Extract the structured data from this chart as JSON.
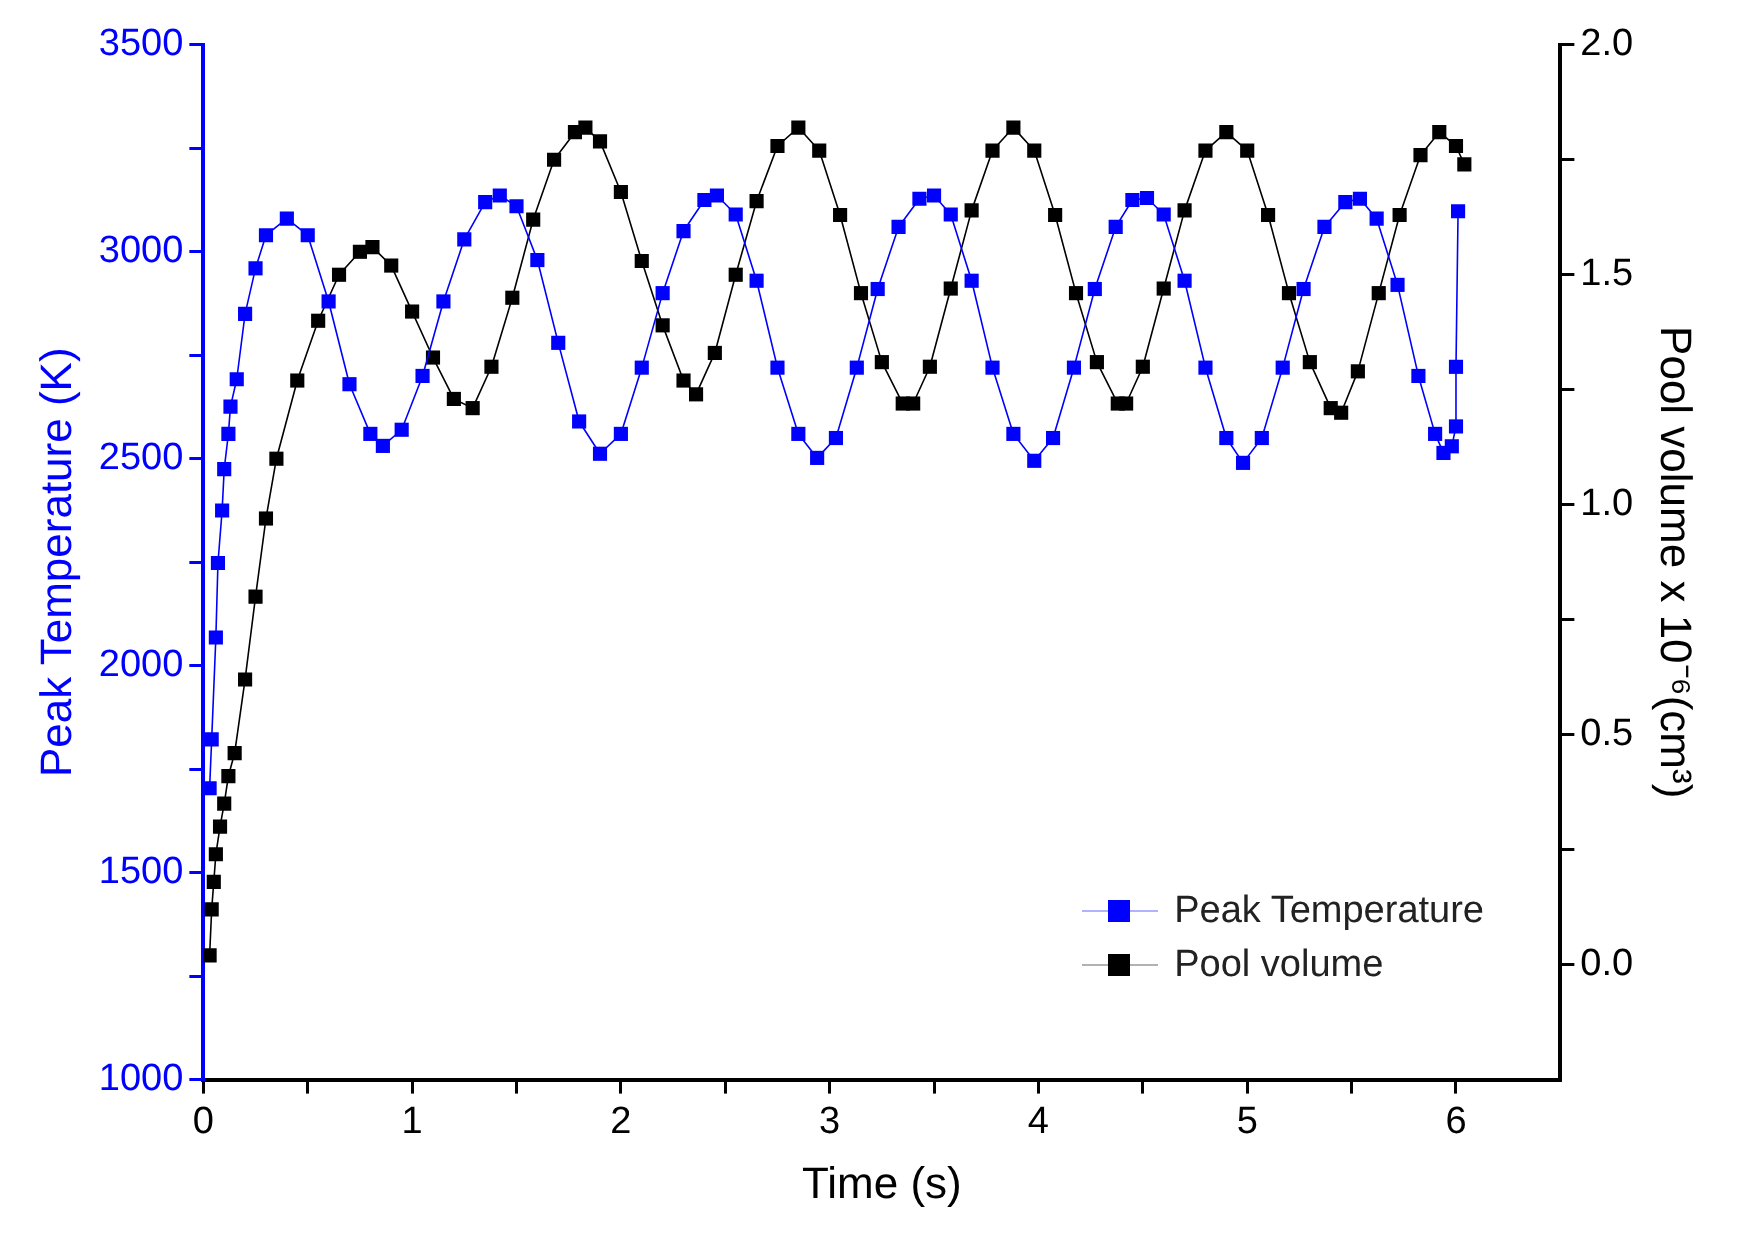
{
  "chart_data": {
    "type": "line",
    "xlabel": "Time (s)",
    "ylabel": "Peak Temperature (K)",
    "y2label": "Pool volume x 10⁻⁶(cm³)",
    "xlim": [
      0,
      6.5
    ],
    "xticks": [
      0,
      {
        "value": 0.5,
        "label": null
      },
      1,
      {
        "value": 1.5,
        "label": null
      },
      2,
      {
        "value": 2.5,
        "label": null
      },
      3,
      {
        "value": 3.5,
        "label": null
      },
      4,
      {
        "value": 4.5,
        "label": null
      },
      5,
      {
        "value": 5.5,
        "label": null
      },
      6
    ],
    "ylim": [
      1000,
      3500
    ],
    "yticks": [
      1000,
      {
        "value": 1250,
        "label": null
      },
      1500,
      {
        "value": 1750,
        "label": null
      },
      2000,
      {
        "value": 2250,
        "label": null
      },
      2500,
      {
        "value": 2750,
        "label": null
      },
      3000,
      {
        "value": 3250,
        "label": null
      },
      3500
    ],
    "y2lim": [
      -0.25,
      2.0
    ],
    "y2ticks": [
      {
        "value": 0,
        "label": "0.0"
      },
      {
        "value": 0.25,
        "label": null
      },
      {
        "value": 0.5,
        "label": "0.5"
      },
      {
        "value": 0.75,
        "label": null
      },
      {
        "value": 1,
        "label": "1.0"
      },
      {
        "value": 1.25,
        "label": null
      },
      {
        "value": 1.5,
        "label": "1.5"
      },
      {
        "value": 1.75,
        "label": null
      },
      {
        "value": 2,
        "label": "2.0"
      }
    ],
    "grid": false,
    "legend": "bottom right",
    "marker": "square",
    "line_style": "solid",
    "series": [
      {
        "name": "Peak Temperature",
        "color": "#0000ff",
        "axis": "y",
        "x": [
          0.03,
          0.04,
          0.06,
          0.07,
          0.09,
          0.1,
          0.12,
          0.13,
          0.16,
          0.2,
          0.25,
          0.3,
          0.4,
          0.5,
          0.6,
          0.7,
          0.8,
          0.86,
          0.95,
          1.05,
          1.15,
          1.25,
          1.35,
          1.42,
          1.5,
          1.6,
          1.7,
          1.8,
          1.9,
          2.0,
          2.1,
          2.2,
          2.3,
          2.4,
          2.46,
          2.55,
          2.65,
          2.75,
          2.85,
          2.94,
          3.03,
          3.13,
          3.23,
          3.33,
          3.43,
          3.5,
          3.58,
          3.68,
          3.78,
          3.88,
          3.98,
          4.07,
          4.17,
          4.27,
          4.37,
          4.45,
          4.52,
          4.6,
          4.7,
          4.8,
          4.9,
          4.98,
          5.07,
          5.17,
          5.27,
          5.37,
          5.47,
          5.54,
          5.62,
          5.72,
          5.82,
          5.9,
          5.94,
          5.98,
          6.0,
          6.0,
          6.01
        ],
        "values": [
          1704,
          1822,
          2068,
          2248,
          2375,
          2475,
          2560,
          2626,
          2692,
          2850,
          2960,
          3040,
          3080,
          3040,
          2880,
          2680,
          2560,
          2531,
          2570,
          2700,
          2880,
          3030,
          3120,
          3136,
          3110,
          2980,
          2780,
          2590,
          2512,
          2560,
          2720,
          2900,
          3050,
          3125,
          3136,
          3090,
          2930,
          2720,
          2560,
          2502,
          2550,
          2720,
          2910,
          3060,
          3128,
          3136,
          3090,
          2930,
          2720,
          2560,
          2495,
          2550,
          2720,
          2910,
          3060,
          3125,
          3130,
          3090,
          2930,
          2720,
          2550,
          2490,
          2550,
          2720,
          2910,
          3060,
          3120,
          3128,
          3080,
          2920,
          2700,
          2560,
          2514,
          2530,
          2578,
          2722,
          3098
        ]
      },
      {
        "name": "Pool volume",
        "color": "#000000",
        "axis": "y2",
        "x": [
          0.03,
          0.04,
          0.05,
          0.06,
          0.08,
          0.1,
          0.12,
          0.15,
          0.2,
          0.25,
          0.3,
          0.35,
          0.45,
          0.55,
          0.65,
          0.75,
          0.81,
          0.9,
          1.0,
          1.1,
          1.2,
          1.29,
          1.38,
          1.48,
          1.58,
          1.68,
          1.78,
          1.83,
          1.9,
          2.0,
          2.1,
          2.2,
          2.3,
          2.36,
          2.45,
          2.55,
          2.65,
          2.75,
          2.85,
          2.95,
          3.05,
          3.15,
          3.25,
          3.35,
          3.4,
          3.48,
          3.58,
          3.68,
          3.78,
          3.88,
          3.98,
          4.08,
          4.18,
          4.28,
          4.38,
          4.42,
          4.5,
          4.6,
          4.7,
          4.8,
          4.9,
          5.0,
          5.1,
          5.2,
          5.3,
          5.4,
          5.45,
          5.53,
          5.63,
          5.73,
          5.83,
          5.92,
          6.0,
          6.04
        ],
        "values": [
          0.02,
          0.12,
          0.18,
          0.24,
          0.3,
          0.35,
          0.41,
          0.46,
          0.62,
          0.8,
          0.97,
          1.1,
          1.27,
          1.4,
          1.5,
          1.55,
          1.56,
          1.52,
          1.42,
          1.32,
          1.23,
          1.21,
          1.3,
          1.45,
          1.62,
          1.75,
          1.81,
          1.82,
          1.79,
          1.68,
          1.53,
          1.39,
          1.27,
          1.24,
          1.33,
          1.5,
          1.66,
          1.78,
          1.82,
          1.77,
          1.63,
          1.46,
          1.31,
          1.22,
          1.22,
          1.3,
          1.47,
          1.64,
          1.77,
          1.82,
          1.77,
          1.63,
          1.46,
          1.31,
          1.22,
          1.22,
          1.3,
          1.47,
          1.64,
          1.77,
          1.81,
          1.77,
          1.63,
          1.46,
          1.31,
          1.21,
          1.2,
          1.29,
          1.46,
          1.63,
          1.76,
          1.81,
          1.78,
          1.74
        ]
      }
    ]
  }
}
